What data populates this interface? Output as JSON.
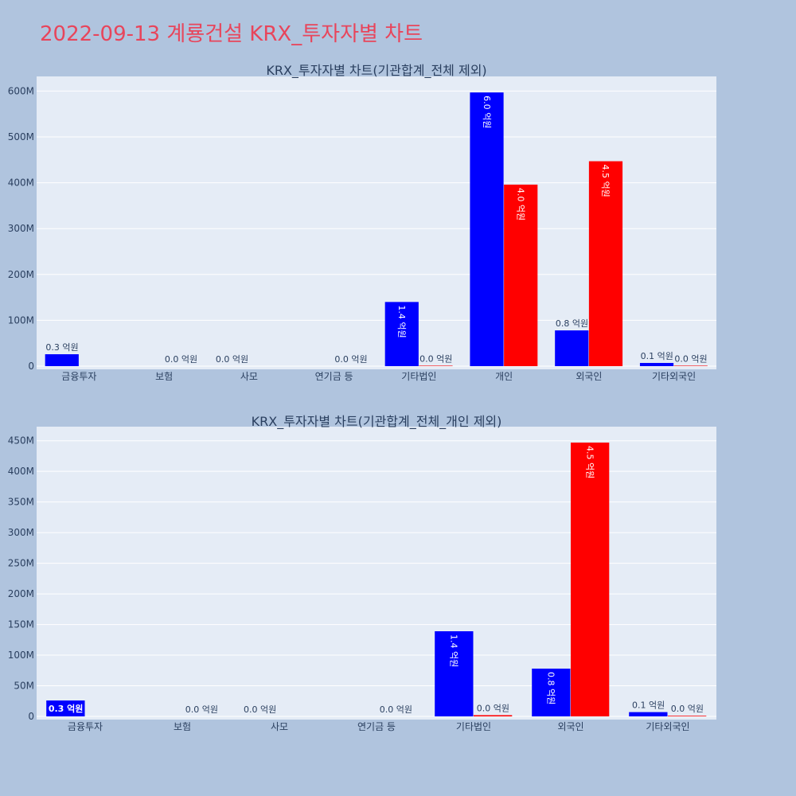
{
  "page": {
    "title": "2022-09-13 계룡건설 KRX_투자자별 차트",
    "background": "#b0c4de",
    "title_color": "#e8455b",
    "plot_background": "#e5ecf6"
  },
  "chart_data": [
    {
      "type": "bar",
      "title": "KRX_투자자별 차트(기관합계_전체 제외)",
      "categories": [
        "금융투자",
        "보험",
        "사모",
        "연기금 등",
        "기타법인",
        "개인",
        "외국인",
        "기타외국인"
      ],
      "series": [
        {
          "color": "#0000ff",
          "values": [
            26000000,
            0,
            0,
            0,
            140000000,
            597000000,
            78000000,
            7000000
          ],
          "labels": [
            "0.3 억원",
            "",
            "0.0 억원",
            "",
            "1.4 억원",
            "6.0 억원",
            "0.8 억원",
            "0.1 억원"
          ]
        },
        {
          "color": "#ff0000",
          "values": [
            0,
            0,
            0,
            0,
            1000000,
            396000000,
            447000000,
            1000000
          ],
          "labels": [
            "",
            "0.0 억원",
            "",
            "0.0 억원",
            "0.0 억원",
            "4.0 억원",
            "4.5 억원",
            "0.0 억원"
          ]
        }
      ],
      "yticks": [
        "0",
        "100M",
        "200M",
        "300M",
        "400M",
        "500M",
        "600M"
      ],
      "ytick_values": [
        0,
        100000000,
        200000000,
        300000000,
        400000000,
        500000000,
        600000000
      ],
      "ylim": [
        0,
        632000000
      ],
      "grid": true,
      "legend": "none"
    },
    {
      "type": "bar",
      "title": "KRX_투자자별 차트(기관합계_전체_개인 제외)",
      "categories": [
        "금융투자",
        "보험",
        "사모",
        "연기금 등",
        "기타법인",
        "외국인",
        "기타외국인"
      ],
      "series": [
        {
          "color": "#0000ff",
          "values": [
            26000000,
            0,
            0,
            0,
            139000000,
            78000000,
            7000000
          ],
          "labels": [
            "0.3 억원",
            "",
            "0.0 억원",
            "",
            "1.4 억원",
            "0.8 억원",
            "0.1 억원"
          ]
        },
        {
          "color": "#ff0000",
          "values": [
            0,
            0,
            0,
            0,
            2000000,
            447000000,
            1000000
          ],
          "labels": [
            "",
            "0.0 억원",
            "",
            "0.0 억원",
            "0.0 억원",
            "4.5 억원",
            "0.0 억원"
          ]
        }
      ],
      "yticks": [
        "0",
        "50M",
        "100M",
        "150M",
        "200M",
        "250M",
        "300M",
        "350M",
        "400M",
        "450M"
      ],
      "ytick_values": [
        0,
        50000000,
        100000000,
        150000000,
        200000000,
        250000000,
        300000000,
        350000000,
        400000000,
        450000000
      ],
      "ylim": [
        0,
        473000000
      ],
      "grid": true,
      "legend": "none"
    }
  ]
}
